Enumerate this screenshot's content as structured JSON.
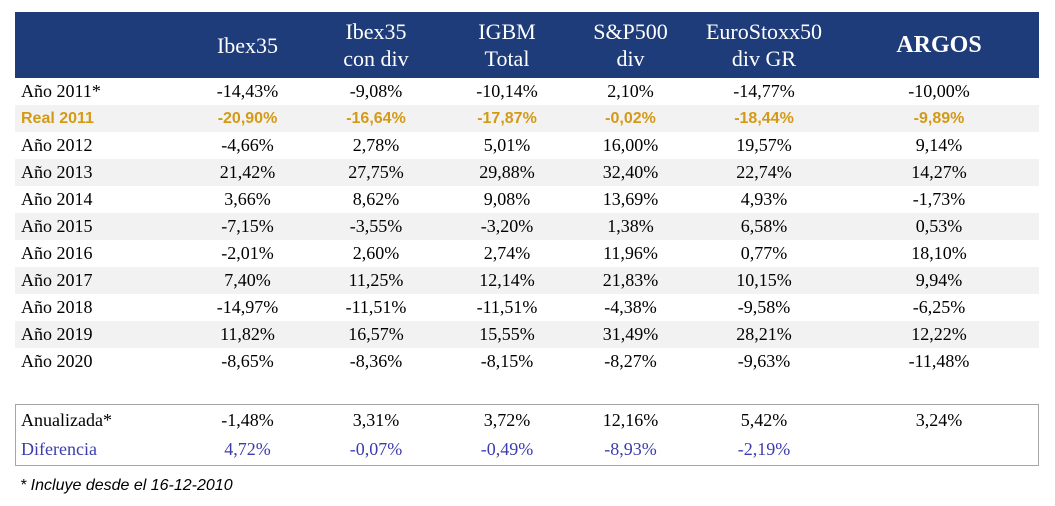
{
  "header": {
    "columns": [
      {
        "line1": "Ibex35",
        "line2": ""
      },
      {
        "line1": "Ibex35",
        "line2": "con div"
      },
      {
        "line1": "IGBM",
        "line2": "Total"
      },
      {
        "line1": "S&P500",
        "line2": "div"
      },
      {
        "line1": "EuroStoxx50",
        "line2": "div GR"
      },
      {
        "line1": "ARGOS",
        "line2": ""
      }
    ]
  },
  "rows": [
    {
      "label": "Año 2011*",
      "values": [
        "-14,43%",
        "-9,08%",
        "-10,14%",
        "2,10%",
        "-14,77%",
        "-10,00%"
      ]
    },
    {
      "label": "Real 2011",
      "values": [
        "-20,90%",
        "-16,64%",
        "-17,87%",
        "-0,02%",
        "-18,44%",
        "-9,89%"
      ]
    },
    {
      "label": "Año 2012",
      "values": [
        "-4,66%",
        "2,78%",
        "5,01%",
        "16,00%",
        "19,57%",
        "9,14%"
      ]
    },
    {
      "label": "Año 2013",
      "values": [
        "21,42%",
        "27,75%",
        "29,88%",
        "32,40%",
        "22,74%",
        "14,27%"
      ]
    },
    {
      "label": "Año 2014",
      "values": [
        "3,66%",
        "8,62%",
        "9,08%",
        "13,69%",
        "4,93%",
        "-1,73%"
      ]
    },
    {
      "label": "Año 2015",
      "values": [
        "-7,15%",
        "-3,55%",
        "-3,20%",
        "1,38%",
        "6,58%",
        "0,53%"
      ]
    },
    {
      "label": "Año 2016",
      "values": [
        "-2,01%",
        "2,60%",
        "2,74%",
        "11,96%",
        "0,77%",
        "18,10%"
      ]
    },
    {
      "label": "Año 2017",
      "values": [
        "7,40%",
        "11,25%",
        "12,14%",
        "21,83%",
        "10,15%",
        "9,94%"
      ]
    },
    {
      "label": "Año 2018",
      "values": [
        "-14,97%",
        "-11,51%",
        "-11,51%",
        "-4,38%",
        "-9,58%",
        "-6,25%"
      ]
    },
    {
      "label": "Año 2019",
      "values": [
        "11,82%",
        "16,57%",
        "15,55%",
        "31,49%",
        "28,21%",
        "12,22%"
      ]
    },
    {
      "label": "Año 2020",
      "values": [
        "-8,65%",
        "-8,36%",
        "-8,15%",
        "-8,27%",
        "-9,63%",
        "-11,48%"
      ]
    }
  ],
  "summary": {
    "annualized": {
      "label": "Anualizada*",
      "values": [
        "-1,48%",
        "3,31%",
        "3,72%",
        "12,16%",
        "5,42%",
        "3,24%"
      ]
    },
    "difference": {
      "label": "Diferencia",
      "values": [
        "4,72%",
        "-0,07%",
        "-0,49%",
        "-8,93%",
        "-2,19%",
        ""
      ]
    }
  },
  "footnote": "* Incluye desde el 16-12-2010",
  "colors": {
    "header_bg": "#1f3c7a",
    "real_row": "#d49a16",
    "difference_row": "#3c3cae",
    "alt_row": "#f2f2f2"
  }
}
